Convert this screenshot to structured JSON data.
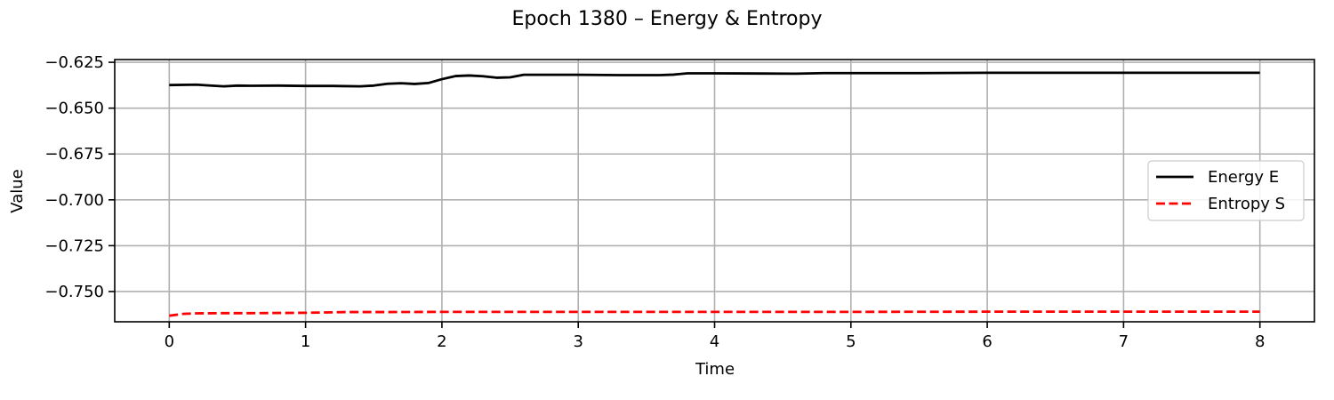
{
  "chart_data": {
    "type": "line",
    "title": "Epoch 1380 – Energy & Entropy",
    "xlabel": "Time",
    "ylabel": "Value",
    "xlim": [
      -0.4,
      8.4
    ],
    "ylim": [
      -0.7665,
      -0.6235
    ],
    "xticks": [
      0,
      1,
      2,
      3,
      4,
      5,
      6,
      7,
      8
    ],
    "xtick_labels": [
      "0",
      "1",
      "2",
      "3",
      "4",
      "5",
      "6",
      "7",
      "8"
    ],
    "yticks": [
      -0.625,
      -0.65,
      -0.675,
      -0.7,
      -0.725,
      -0.75
    ],
    "ytick_labels": [
      "−0.625",
      "−0.650",
      "−0.675",
      "−0.700",
      "−0.725",
      "−0.750"
    ],
    "grid": true,
    "legend_position": "center-right",
    "series": [
      {
        "name": "Energy E",
        "color": "#000000",
        "dash": "solid",
        "x": [
          0.0,
          0.2,
          0.3,
          0.4,
          0.5,
          0.6,
          0.8,
          1.0,
          1.2,
          1.4,
          1.5,
          1.6,
          1.7,
          1.8,
          1.9,
          2.0,
          2.1,
          2.2,
          2.3,
          2.4,
          2.5,
          2.6,
          2.8,
          3.0,
          3.3,
          3.6,
          3.7,
          3.8,
          4.0,
          4.3,
          4.6,
          4.8,
          5.0,
          5.5,
          6.0,
          6.5,
          7.0,
          7.5,
          8.0
        ],
        "y": [
          -0.6374,
          -0.6372,
          -0.6377,
          -0.6381,
          -0.6377,
          -0.6378,
          -0.6377,
          -0.6379,
          -0.6379,
          -0.6381,
          -0.6377,
          -0.6367,
          -0.6364,
          -0.6368,
          -0.6363,
          -0.6342,
          -0.6325,
          -0.6322,
          -0.6326,
          -0.6334,
          -0.6332,
          -0.6318,
          -0.6318,
          -0.6318,
          -0.632,
          -0.632,
          -0.6317,
          -0.631,
          -0.631,
          -0.6311,
          -0.6312,
          -0.6309,
          -0.6309,
          -0.6309,
          -0.6307,
          -0.6307,
          -0.6307,
          -0.6307,
          -0.6307
        ]
      },
      {
        "name": "Entropy S",
        "color": "#ff0000",
        "dash": "dashed",
        "x": [
          0.0,
          0.1,
          0.2,
          0.4,
          0.6,
          1.0,
          1.3,
          1.6,
          2.0,
          3.0,
          4.0,
          5.0,
          6.0,
          7.0,
          8.0
        ],
        "y": [
          -0.7632,
          -0.7622,
          -0.7619,
          -0.7618,
          -0.7618,
          -0.7616,
          -0.7612,
          -0.7612,
          -0.7611,
          -0.7611,
          -0.7611,
          -0.7611,
          -0.761,
          -0.761,
          -0.761
        ]
      }
    ]
  }
}
